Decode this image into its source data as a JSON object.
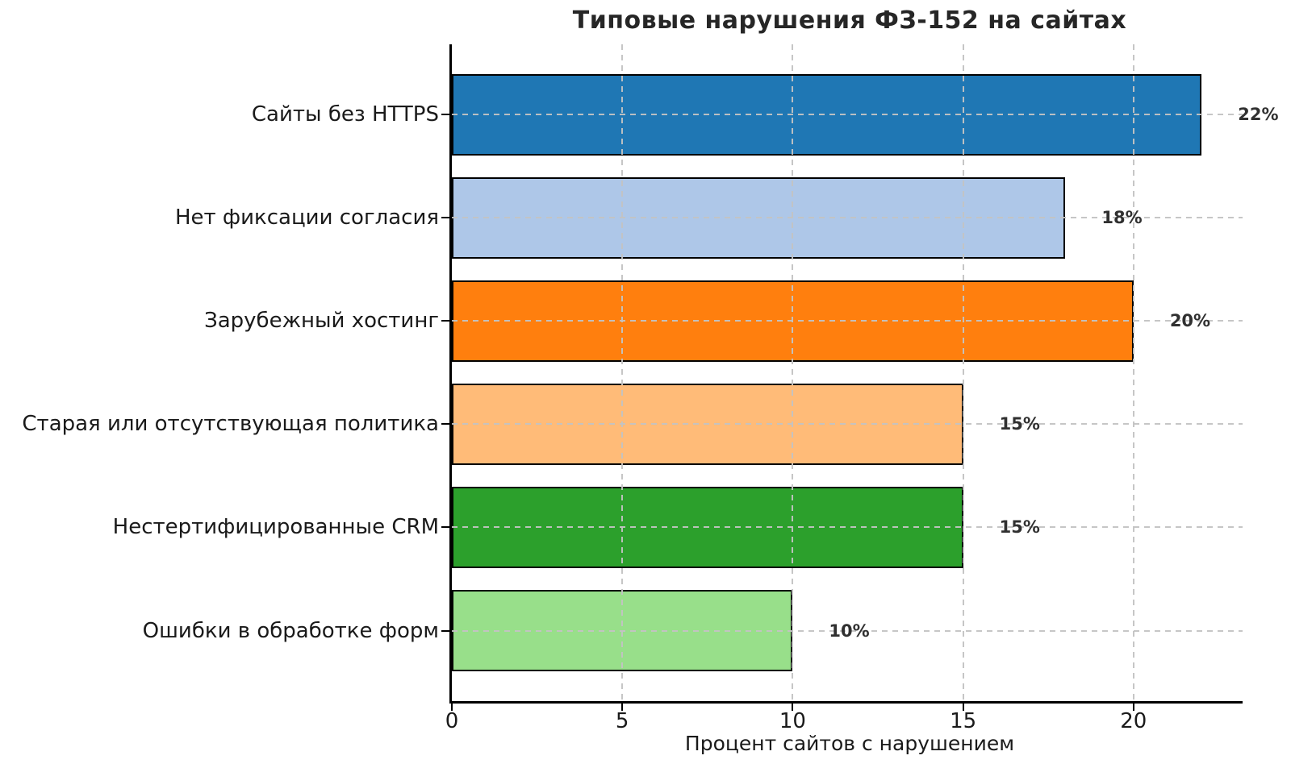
{
  "chart_data": {
    "type": "bar",
    "orientation": "horizontal",
    "title": "Типовые нарушения ФЗ-152 на сайтах",
    "xlabel": "Процент сайтов с нарушением",
    "ylabel": "",
    "categories": [
      "Сайты без HTTPS",
      "Нет фиксации согласия",
      "Зарубежный хостинг",
      "Старая или отсутствующая политика",
      "Нестертифицированные CRM",
      "Ошибки в обработке форм"
    ],
    "values": [
      22,
      18,
      20,
      15,
      15,
      10
    ],
    "value_labels": [
      "22%",
      "18%",
      "20%",
      "15%",
      "15%",
      "10%"
    ],
    "bar_colors": [
      "#1f77b4",
      "#aec7e8",
      "#ff7f0e",
      "#ffbb78",
      "#2ca02c",
      "#98df8a"
    ],
    "bar_edge_color": "#000000",
    "xlim": [
      0,
      23.2
    ],
    "xticks": [
      "0",
      "5",
      "10",
      "15",
      "20"
    ],
    "xtick_values": [
      0,
      5,
      10,
      15,
      20
    ],
    "grid": {
      "style": "dashed",
      "color": "#c3c3c3",
      "horizontal": true,
      "vertical": true,
      "drawn_above_bars": true
    },
    "legend": null,
    "background": "#ffffff",
    "text_color": "#1a1a1a"
  }
}
